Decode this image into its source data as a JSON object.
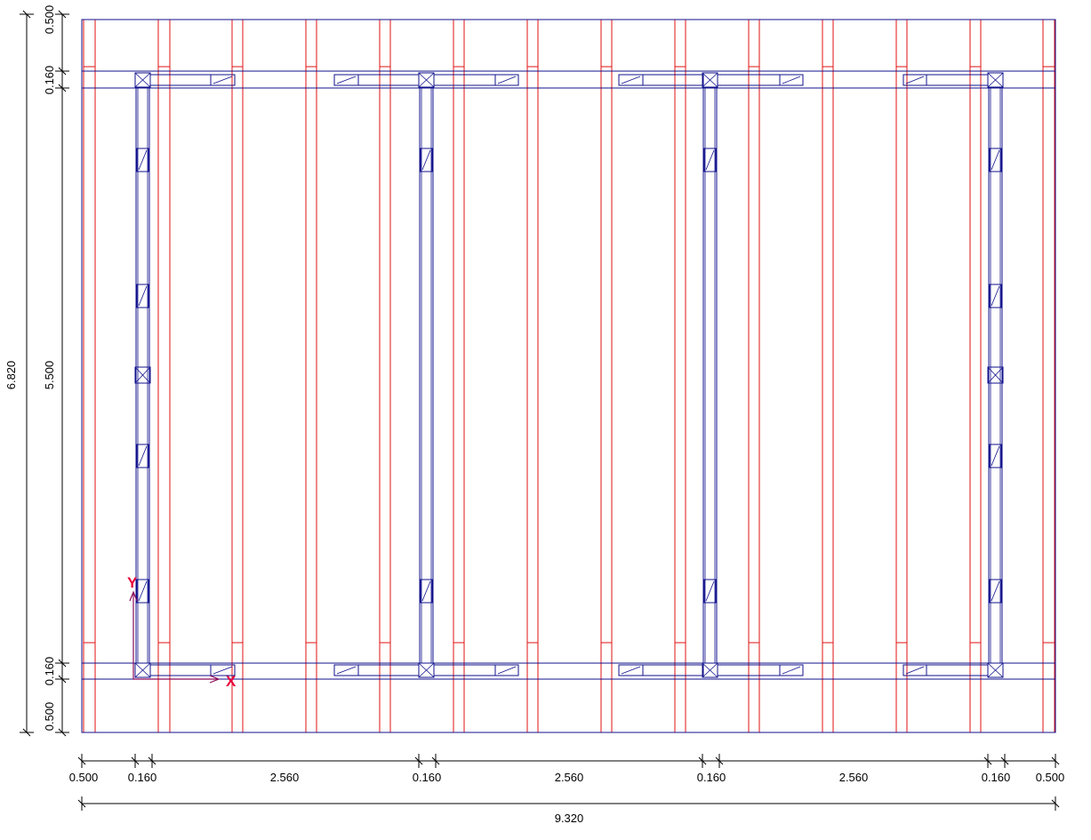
{
  "drawing": {
    "colors": {
      "frame": "#10108c",
      "support": "#e01010",
      "dimension": "#000000",
      "axis": "#e8003a",
      "axis_line": "#8c0a5a"
    },
    "horizontal_dims": {
      "segments": [
        {
          "label": "0.500"
        },
        {
          "label": "0.160"
        },
        {
          "label": "2.560"
        },
        {
          "label": "0.160"
        },
        {
          "label": "2.560"
        },
        {
          "label": "0.160"
        },
        {
          "label": "2.560"
        },
        {
          "label": "0.160"
        },
        {
          "label": "0.500"
        }
      ],
      "total": {
        "label": "9.320"
      }
    },
    "vertical_dims": {
      "segments": [
        {
          "label": "0.500"
        },
        {
          "label": "0.160"
        },
        {
          "label": "5.500"
        },
        {
          "label": "0.160"
        },
        {
          "label": "0.500"
        }
      ],
      "total": {
        "label": "6.820"
      }
    },
    "axes": {
      "x_label": "X",
      "y_label": "Y"
    }
  }
}
